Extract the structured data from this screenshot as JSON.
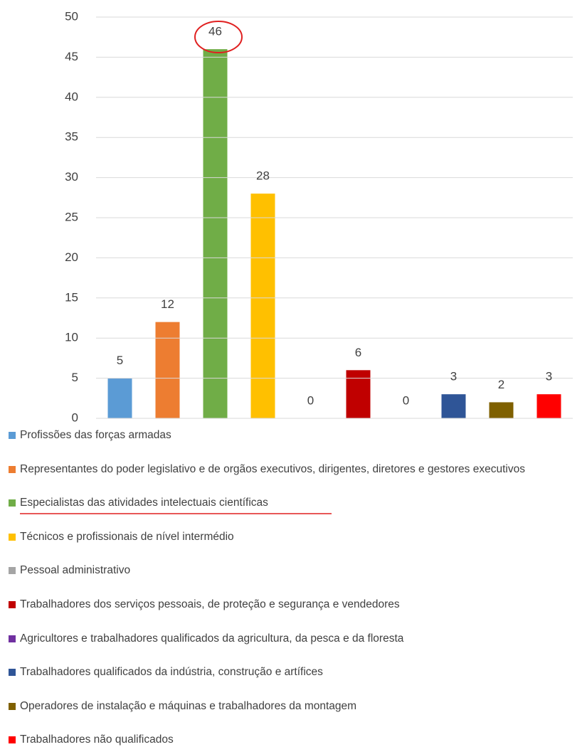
{
  "chart_data": {
    "type": "bar",
    "categories": [
      "Profissões das forças armadas",
      "Representantes do poder legislativo e de orgãos executivos, dirigentes, diretores e gestores executivos",
      "Especialistas das atividades intelectuais científicas",
      "Técnicos e profissionais de nível intermédio",
      "Pessoal administrativo",
      "Trabalhadores dos serviços pessoais, de proteção e segurança e vendedores",
      "Agricultores e trabalhadores qualificados da agricultura, da pesca e da floresta",
      "Trabalhadores qualificados da indústria, construção e artífices",
      "Operadores de instalação e máquinas e trabalhadores da montagem",
      "Trabalhadores não qualificados"
    ],
    "values": [
      5,
      12,
      46,
      28,
      0,
      6,
      0,
      3,
      2,
      3
    ],
    "colors": [
      "#5b9bd5",
      "#ed7d31",
      "#70ad47",
      "#ffc000",
      "#a5a5a5",
      "#c00000",
      "#7030a0",
      "#2f5597",
      "#7f6000",
      "#ff0000"
    ],
    "ylim": [
      0,
      50
    ],
    "yticks": [
      0,
      5,
      10,
      15,
      20,
      25,
      30,
      35,
      40,
      45,
      50
    ],
    "grid": true,
    "legend": "bottom"
  }
}
